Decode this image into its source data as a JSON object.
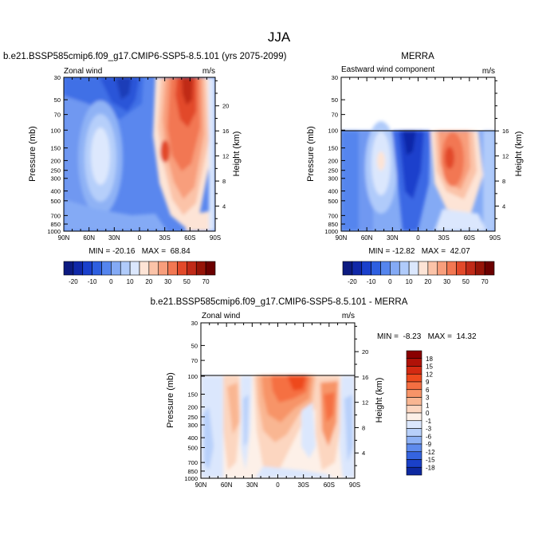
{
  "title": "JJA",
  "chart_data": [
    {
      "type": "heatmap",
      "title": "b.e21.BSSP585cmip6.f09_g17.CMIP6-SSP5-8.5.101 (yrs 2075-2099)",
      "subtitle_left": "Zonal wind",
      "subtitle_right": "m/s",
      "ylabel": "Pressure (mb)",
      "ylabel_right": "Height (km)",
      "x_ticks": [
        "90N",
        "60N",
        "30N",
        "0",
        "30S",
        "60S",
        "90S"
      ],
      "y_ticks": [
        "30",
        "50",
        "70",
        "100",
        "150",
        "200",
        "250",
        "300",
        "400",
        "500",
        "700",
        "850",
        "1000"
      ],
      "height_ticks": [
        "4",
        "8",
        "12",
        "16",
        "20"
      ],
      "ylim": [
        1000,
        30
      ],
      "stats": "MIN = -20.16   MAX =  68.84",
      "colorbar_labels": [
        "-20",
        "-10",
        "0",
        "10",
        "20",
        "30",
        "50",
        "70"
      ],
      "colorbar_colors": [
        "#0c1a80",
        "#1028a8",
        "#1a40cc",
        "#2e5fe0",
        "#5585ee",
        "#84aaf5",
        "#b0cbfa",
        "#dbe7fd",
        "#fde4d6",
        "#fbc3a8",
        "#f89e7c",
        "#f27752",
        "#e2492a",
        "#c02a18",
        "#961408",
        "#6b0000"
      ],
      "zlim": [
        -20,
        70
      ]
    },
    {
      "type": "heatmap",
      "title": "MERRA",
      "subtitle_left": "Eastward wind component",
      "subtitle_right": "m/s",
      "ylabel": "Pressure (mb)",
      "ylabel_right": "Height (km)",
      "x_ticks": [
        "90N",
        "60N",
        "30N",
        "0",
        "30S",
        "60S",
        "90S"
      ],
      "y_ticks": [
        "30",
        "50",
        "70",
        "100",
        "150",
        "200",
        "250",
        "300",
        "400",
        "500",
        "700",
        "850",
        "1000"
      ],
      "height_ticks": [
        "4",
        "8",
        "12",
        "16"
      ],
      "ylim": [
        1000,
        30
      ],
      "stats": "MIN = -12.82   MAX =  42.07",
      "colorbar_labels": [
        "-20",
        "-10",
        "0",
        "10",
        "20",
        "30",
        "50",
        "70"
      ],
      "colorbar_colors": [
        "#0c1a80",
        "#1028a8",
        "#1a40cc",
        "#2e5fe0",
        "#5585ee",
        "#84aaf5",
        "#b0cbfa",
        "#dbe7fd",
        "#fde4d6",
        "#fbc3a8",
        "#f89e7c",
        "#f27752",
        "#e2492a",
        "#c02a18",
        "#961408",
        "#6b0000"
      ],
      "zlim": [
        -20,
        70
      ]
    },
    {
      "type": "heatmap",
      "title": "b.e21.BSSP585cmip6.f09_g17.CMIP6-SSP5-8.5.101 - MERRA",
      "subtitle_left": "Zonal wind",
      "subtitle_right": "m/s",
      "ylabel": "Pressure (mb)",
      "ylabel_right": "Height (km)",
      "x_ticks": [
        "90N",
        "60N",
        "30N",
        "0",
        "30S",
        "60S",
        "90S"
      ],
      "y_ticks": [
        "30",
        "50",
        "70",
        "100",
        "150",
        "200",
        "250",
        "300",
        "400",
        "500",
        "700",
        "850",
        "1000"
      ],
      "height_ticks": [
        "4",
        "8",
        "12",
        "16",
        "20"
      ],
      "ylim": [
        1000,
        30
      ],
      "stats": "MIN =  -8.23   MAX =  14.32",
      "colorbar_labels": [
        "18",
        "15",
        "12",
        "9",
        "6",
        "3",
        "1",
        "0",
        "-1",
        "-3",
        "-6",
        "-9",
        "-12",
        "-15",
        "-18"
      ],
      "colorbar_colors": [
        "#8a0000",
        "#b01208",
        "#d42a12",
        "#ee4a1e",
        "#f56f42",
        "#f79468",
        "#f9b692",
        "#fcd6c0",
        "#fdf0e8",
        "#dbe7fd",
        "#b8d0fa",
        "#8eb2f5",
        "#5e8bed",
        "#3564e0",
        "#1a40c8",
        "#0d28a0"
      ],
      "zlim": [
        -18,
        18
      ]
    }
  ]
}
